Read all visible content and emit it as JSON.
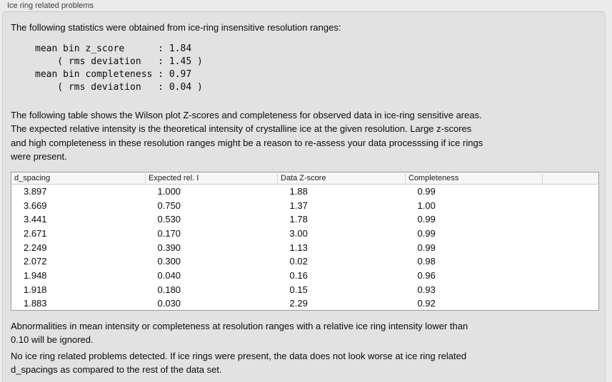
{
  "panel": {
    "title": "Ice ring related problems",
    "intro": "The following statistics were obtained from ice-ring insensitive resolution ranges:",
    "stats_block": "mean bin z_score      : 1.84\n    ( rms deviation   : 1.45 )\nmean bin completeness : 0.97\n    ( rms deviation   : 0.04 )",
    "table_description": "The following table shows the Wilson plot Z-scores and completeness for observed data in ice-ring sensitive areas.\nThe expected relative intensity is the theoretical intensity of crystalline ice at the given resolution. Large z-scores\nand high completeness in these resolution ranges might be a reason to re-assess your data processsing if ice rings\nwere present.",
    "note_ignore": "Abnormalities in mean intensity or completeness at resolution ranges with a relative ice ring intensity lower than\n0.10 will be ignored.",
    "conclusion": "No ice ring related problems detected. If ice rings were present, the data does not look worse at ice ring related\nd_spacings as compared to the rest of the data set."
  },
  "table": {
    "columns": [
      "d_spacing",
      "Expected rel. I",
      "Data Z-score",
      "Completeness",
      ""
    ],
    "rows": [
      [
        "3.897",
        "1.000",
        "1.88",
        "0.99"
      ],
      [
        "3.669",
        "0.750",
        "1.37",
        "1.00"
      ],
      [
        "3.441",
        "0.530",
        "1.78",
        "0.99"
      ],
      [
        "2.671",
        "0.170",
        "3.00",
        "0.99"
      ],
      [
        "2.249",
        "0.390",
        "1.13",
        "0.99"
      ],
      [
        "2.072",
        "0.300",
        "0.02",
        "0.98"
      ],
      [
        "1.948",
        "0.040",
        "0.16",
        "0.96"
      ],
      [
        "1.918",
        "0.180",
        "0.15",
        "0.93"
      ],
      [
        "1.883",
        "0.030",
        "2.29",
        "0.92"
      ]
    ]
  },
  "stats_values": {
    "mean_bin_z_score": "1.84",
    "z_score_rms_deviation": "1.45",
    "mean_bin_completeness": "0.97",
    "completeness_rms_deviation": "0.04"
  },
  "colors": {
    "outer_background": "#ebebeb",
    "panel_background": "#e2e2e2",
    "table_background": "#ffffff",
    "table_header_background": "#f6f6f6",
    "table_border": "#9a9a9a",
    "text": "#0b0b0b"
  }
}
